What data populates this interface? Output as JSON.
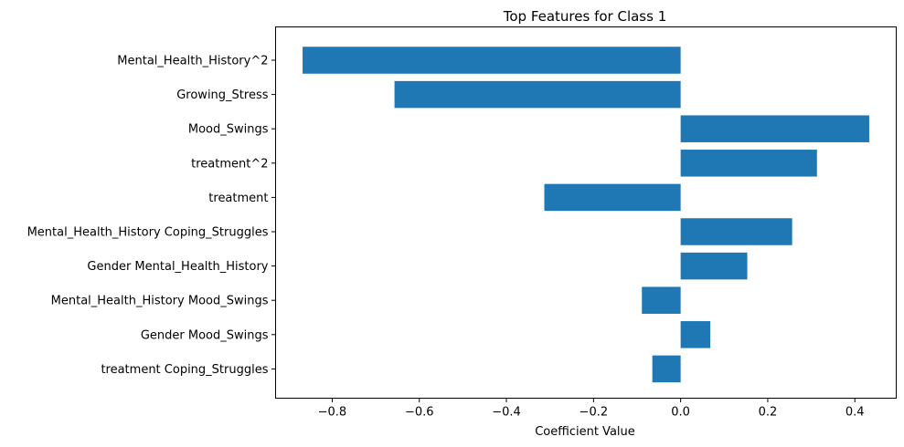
{
  "chart_data": {
    "type": "bar",
    "orientation": "horizontal",
    "title": "Top Features for Class 1",
    "xlabel": "Coefficient Value",
    "ylabel": "",
    "categories": [
      "Mental_Health_History^2",
      "Growing_Stress",
      "Mood_Swings",
      "treatment^2",
      "treatment",
      "Mental_Health_History Coping_Struggles",
      "Gender Mental_Health_History",
      "Mental_Health_History Mood_Swings",
      "Gender Mood_Swings",
      "treatment Coping_Struggles"
    ],
    "values": [
      -0.868,
      -0.657,
      0.433,
      0.313,
      -0.313,
      0.256,
      0.153,
      -0.089,
      0.068,
      -0.065
    ],
    "xlim": [
      -0.93,
      0.495
    ],
    "xticks": [
      -0.8,
      -0.6,
      -0.4,
      -0.2,
      0.0,
      0.2,
      0.4
    ],
    "xtick_labels": [
      "−0.8",
      "−0.6",
      "−0.4",
      "−0.2",
      "0.0",
      "0.2",
      "0.4"
    ],
    "bar_color": "#1f77b4",
    "grid": false,
    "legend": "none"
  }
}
